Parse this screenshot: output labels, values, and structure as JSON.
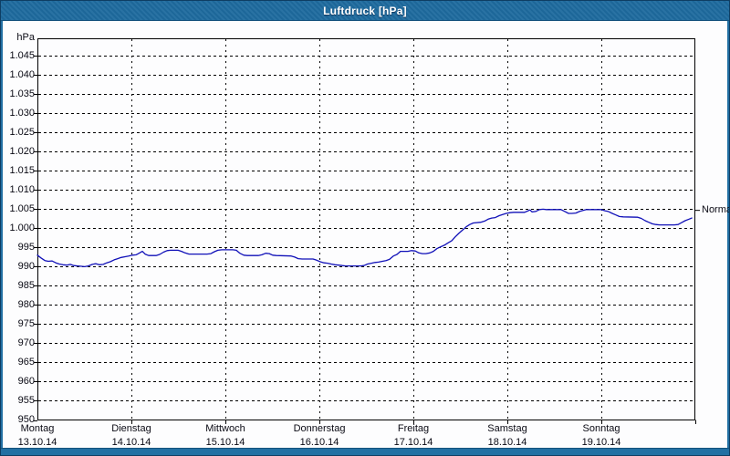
{
  "window": {
    "title": "Luftdruck [hPa]"
  },
  "theme": {
    "title_bar_color": "#1e6a9e",
    "frame_color": "#2270a3",
    "frame_edge_color": "#0e3e63",
    "plot_background": "#fdfdfe",
    "grid_color": "#000000",
    "line_color": "#1010b8",
    "label_color": "#0a0a14"
  },
  "chart_data": {
    "type": "line",
    "title": "Luftdruck [hPa]",
    "unit": "hPa",
    "ylabel": "hPa",
    "xlabel": "",
    "ylim": [
      950,
      1049.6
    ],
    "ytick_step": 5,
    "grid": "dashed",
    "legend_position": "none",
    "x_range_hours": [
      0,
      168
    ],
    "y_ticks": [
      {
        "value": 1045,
        "label": "1.045"
      },
      {
        "value": 1040,
        "label": "1.040"
      },
      {
        "value": 1035,
        "label": "1.035"
      },
      {
        "value": 1030,
        "label": "1.030"
      },
      {
        "value": 1025,
        "label": "1.025"
      },
      {
        "value": 1020,
        "label": "1.020"
      },
      {
        "value": 1015,
        "label": "1.015"
      },
      {
        "value": 1010,
        "label": "1.010"
      },
      {
        "value": 1005,
        "label": "1.005"
      },
      {
        "value": 1000,
        "label": "1.000"
      },
      {
        "value": 995,
        "label": "995"
      },
      {
        "value": 990,
        "label": "990"
      },
      {
        "value": 985,
        "label": "985"
      },
      {
        "value": 980,
        "label": "980"
      },
      {
        "value": 975,
        "label": "975"
      },
      {
        "value": 970,
        "label": "970"
      },
      {
        "value": 965,
        "label": "965"
      },
      {
        "value": 960,
        "label": "960"
      },
      {
        "value": 955,
        "label": "955"
      },
      {
        "value": 950,
        "label": "950"
      }
    ],
    "days": [
      {
        "name": "Montag",
        "date": "13.10.14"
      },
      {
        "name": "Dienstag",
        "date": "14.10.14"
      },
      {
        "name": "Mittwoch",
        "date": "15.10.14"
      },
      {
        "name": "Donnerstag",
        "date": "16.10.14"
      },
      {
        "name": "Freitag",
        "date": "17.10.14"
      },
      {
        "name": "Samstag",
        "date": "18.10.14"
      },
      {
        "name": "Sonntag",
        "date": "19.10.14"
      }
    ],
    "normal_marker": {
      "label": "Normal",
      "value": 1004.7
    },
    "series": [
      {
        "name": "Luftdruck",
        "color": "#1010b8",
        "x_hours": [
          0,
          0.9,
          1.9,
          2.8,
          3.7,
          4.7,
          5.6,
          6.5,
          7.5,
          8.4,
          9.3,
          10.3,
          11.2,
          12.1,
          13,
          14,
          14.9,
          15.8,
          16.8,
          17.7,
          18.6,
          19.6,
          20.5,
          21.4,
          22.4,
          23.3,
          24.2,
          25.2,
          26.1,
          26.8,
          27.5,
          28.4,
          30.3,
          31.2,
          32.2,
          33.1,
          34,
          35.9,
          36.8,
          37.7,
          38.7,
          43.3,
          44.3,
          45.2,
          46.1,
          47.1,
          49.9,
          50.8,
          51.7,
          52.7,
          53.6,
          56.4,
          57.3,
          58.3,
          59.2,
          60.1,
          61,
          64.8,
          65.7,
          66.6,
          67.6,
          70.4,
          71.3,
          72.2,
          73.2,
          74.1,
          75,
          76,
          76.9,
          77.8,
          78.7,
          82.5,
          83.4,
          84.3,
          85.3,
          86.2,
          87.1,
          88.1,
          89,
          89.9,
          90.9,
          91.8,
          92.7,
          94.6,
          95.5,
          96.5,
          97.4,
          98.3,
          99.2,
          100.2,
          101.1,
          102,
          103,
          103.9,
          104.8,
          105.8,
          106.7,
          107.6,
          108.5,
          109.5,
          110.4,
          111.3,
          113.2,
          114.2,
          115.1,
          116,
          116.9,
          117.9,
          118.8,
          119.7,
          120.7,
          121.6,
          124.4,
          125.3,
          125.8,
          126.3,
          127.2,
          128.2,
          129.1,
          130,
          133.7,
          134.7,
          135.6,
          136.5,
          137.5,
          138.4,
          139.3,
          140.2,
          144,
          144.9,
          145.8,
          146.8,
          147.7,
          148.6,
          149.6,
          153.3,
          154.2,
          155.2,
          156.1,
          157,
          157.9,
          158.9,
          162.6,
          163.6,
          164.5,
          165.4,
          166.4,
          167.1
        ],
        "values": [
          993,
          992.3,
          991.6,
          991.4,
          991.5,
          991,
          990.7,
          990.5,
          990.4,
          990.6,
          990.3,
          990.2,
          990.1,
          990,
          990.2,
          990.6,
          990.8,
          990.5,
          990.6,
          991,
          991.3,
          991.8,
          992.1,
          992.4,
          992.6,
          992.8,
          993,
          993.1,
          993.6,
          994,
          993.3,
          992.9,
          992.9,
          993.2,
          993.8,
          994.2,
          994.3,
          994.3,
          994,
          993.6,
          993.3,
          993.3,
          993.4,
          993.9,
          994.3,
          994.4,
          994.4,
          994.3,
          993.5,
          993,
          992.9,
          992.9,
          993.1,
          993.5,
          993.4,
          993,
          992.9,
          992.8,
          992.5,
          992.1,
          992,
          992,
          991.7,
          991.3,
          991,
          990.9,
          990.7,
          990.5,
          990.4,
          990.3,
          990.2,
          990.2,
          990.3,
          990.7,
          990.9,
          991.1,
          991.2,
          991.4,
          991.6,
          991.9,
          992.8,
          993.2,
          994,
          994,
          994.2,
          994.1,
          993.6,
          993.4,
          993.4,
          993.6,
          994,
          994.7,
          995.2,
          995.6,
          996.2,
          996.8,
          997.8,
          998.7,
          999.5,
          1000.4,
          1001,
          1001.4,
          1001.6,
          1001.9,
          1002.4,
          1002.7,
          1002.8,
          1003.3,
          1003.6,
          1003.9,
          1004.1,
          1004.2,
          1004.2,
          1004.6,
          1004.8,
          1004.3,
          1004.4,
          1004.9,
          1005,
          1004.9,
          1004.9,
          1004.4,
          1003.9,
          1003.9,
          1004,
          1004.4,
          1004.7,
          1004.9,
          1004.9,
          1004.6,
          1004.4,
          1003.9,
          1003.5,
          1003.1,
          1003,
          1002.9,
          1002.6,
          1002,
          1001.6,
          1001.2,
          1001,
          1000.9,
          1000.9,
          1001,
          1001.5,
          1002,
          1002.4,
          1002.7
        ]
      }
    ]
  }
}
